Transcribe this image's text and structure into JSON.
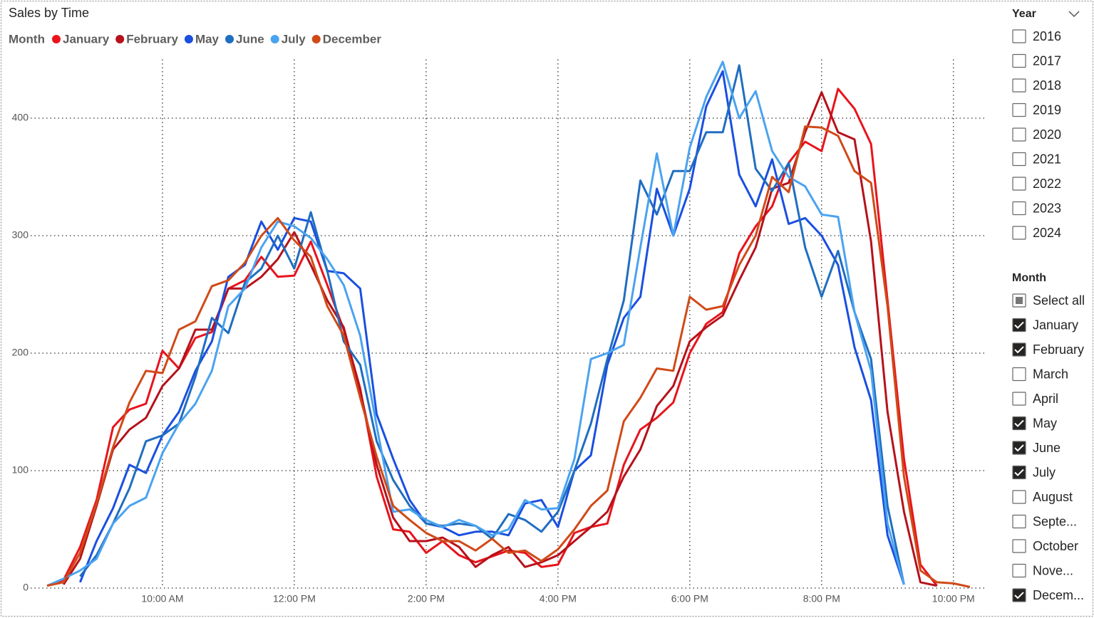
{
  "chart_data": {
    "type": "line",
    "title": "Sales by Time",
    "legend_title": "Month",
    "legend": "top-left",
    "grid": true,
    "x": [
      8.25,
      8.5,
      8.75,
      9,
      9.25,
      9.5,
      9.75,
      10,
      10.25,
      10.5,
      10.75,
      11,
      11.25,
      11.5,
      11.75,
      12,
      12.25,
      12.5,
      12.75,
      13,
      13.25,
      13.5,
      13.75,
      14,
      14.25,
      14.5,
      14.75,
      15,
      15.25,
      15.5,
      15.75,
      16,
      16.25,
      16.5,
      16.75,
      17,
      17.25,
      17.5,
      17.75,
      18,
      18.25,
      18.5,
      18.75,
      19,
      19.25,
      19.5,
      19.75,
      20,
      20.25,
      20.5,
      20.75,
      21,
      21.25,
      21.5,
      21.75,
      22,
      22.25
    ],
    "xlim": [
      8,
      22.5
    ],
    "xticks": [
      {
        "value": 10,
        "label": "10:00 AM"
      },
      {
        "value": 12,
        "label": "12:00 PM"
      },
      {
        "value": 14,
        "label": "2:00 PM"
      },
      {
        "value": 16,
        "label": "4:00 PM"
      },
      {
        "value": 18,
        "label": "6:00 PM"
      },
      {
        "value": 20,
        "label": "8:00 PM"
      },
      {
        "value": 22,
        "label": "10:00 PM"
      }
    ],
    "ylim": [
      0,
      450
    ],
    "yticks": [
      0,
      100,
      200,
      300,
      400
    ],
    "series": [
      {
        "name": "January",
        "color": "#e8141c",
        "values": [
          2,
          7,
          35,
          75,
          137,
          152,
          157,
          202,
          187,
          213,
          218,
          255,
          262,
          282,
          265,
          266,
          295,
          258,
          220,
          170,
          95,
          50,
          48,
          30,
          40,
          28,
          22,
          27,
          32,
          30,
          18,
          20,
          47,
          52,
          55,
          105,
          135,
          145,
          158,
          200,
          225,
          235,
          285,
          308,
          325,
          362,
          380,
          372,
          425,
          408,
          378,
          245,
          110,
          20,
          2,
          null,
          null
        ]
      },
      {
        "name": "February",
        "color": "#b5121b",
        "values": [
          null,
          3,
          25,
          70,
          118,
          135,
          145,
          172,
          187,
          220,
          220,
          255,
          255,
          265,
          280,
          303,
          275,
          245,
          222,
          168,
          105,
          60,
          40,
          40,
          43,
          35,
          18,
          28,
          35,
          18,
          22,
          28,
          40,
          52,
          65,
          95,
          118,
          155,
          172,
          210,
          222,
          232,
          262,
          290,
          340,
          345,
          388,
          422,
          388,
          382,
          295,
          150,
          65,
          5,
          2,
          null,
          null
        ]
      },
      {
        "name": "May",
        "color": "#1a4fe0",
        "values": [
          null,
          null,
          5,
          40,
          68,
          105,
          98,
          130,
          150,
          185,
          210,
          265,
          275,
          312,
          288,
          315,
          312,
          270,
          268,
          255,
          148,
          110,
          75,
          55,
          52,
          45,
          48,
          48,
          45,
          72,
          75,
          52,
          100,
          113,
          190,
          230,
          248,
          340,
          300,
          340,
          410,
          440,
          352,
          325,
          365,
          310,
          315,
          300,
          275,
          205,
          160,
          45,
          3,
          null,
          null,
          null,
          null
        ]
      },
      {
        "name": "June",
        "color": "#1f6ec0",
        "values": [
          null,
          null,
          10,
          28,
          55,
          85,
          125,
          130,
          140,
          180,
          230,
          217,
          260,
          272,
          300,
          272,
          320,
          270,
          210,
          190,
          125,
          92,
          70,
          55,
          53,
          55,
          53,
          42,
          63,
          58,
          48,
          65,
          100,
          140,
          195,
          245,
          347,
          318,
          355,
          355,
          388,
          388,
          445,
          357,
          338,
          362,
          290,
          248,
          287,
          235,
          195,
          70,
          3,
          null,
          null,
          null,
          null
        ]
      },
      {
        "name": "July",
        "color": "#4aa3f0",
        "values": [
          2,
          8,
          15,
          25,
          55,
          70,
          77,
          115,
          140,
          157,
          185,
          240,
          255,
          290,
          312,
          308,
          298,
          280,
          258,
          215,
          138,
          65,
          67,
          58,
          52,
          58,
          53,
          45,
          50,
          75,
          67,
          68,
          110,
          195,
          200,
          207,
          290,
          370,
          300,
          375,
          418,
          448,
          400,
          423,
          372,
          350,
          342,
          318,
          316,
          235,
          185,
          55,
          3,
          null,
          null,
          null,
          null
        ]
      },
      {
        "name": "December",
        "color": "#d04a18",
        "values": [
          2,
          5,
          30,
          72,
          120,
          158,
          185,
          183,
          220,
          227,
          257,
          262,
          277,
          300,
          315,
          296,
          282,
          240,
          215,
          162,
          112,
          70,
          58,
          47,
          40,
          40,
          32,
          42,
          30,
          32,
          23,
          33,
          50,
          70,
          83,
          142,
          162,
          187,
          185,
          248,
          237,
          240,
          275,
          300,
          350,
          337,
          393,
          392,
          385,
          355,
          345,
          240,
          95,
          15,
          5,
          4,
          1
        ]
      }
    ]
  },
  "slicers": [
    {
      "title": "Year",
      "items": [
        {
          "label": "2016",
          "state": "unchecked"
        },
        {
          "label": "2017",
          "state": "unchecked"
        },
        {
          "label": "2018",
          "state": "unchecked"
        },
        {
          "label": "2019",
          "state": "unchecked"
        },
        {
          "label": "2020",
          "state": "unchecked"
        },
        {
          "label": "2021",
          "state": "unchecked"
        },
        {
          "label": "2022",
          "state": "unchecked"
        },
        {
          "label": "2023",
          "state": "unchecked"
        },
        {
          "label": "2024",
          "state": "unchecked"
        }
      ]
    },
    {
      "title": "Month",
      "items": [
        {
          "label": "Select all",
          "state": "partial"
        },
        {
          "label": "January",
          "state": "checked"
        },
        {
          "label": "February",
          "state": "checked"
        },
        {
          "label": "March",
          "state": "unchecked"
        },
        {
          "label": "April",
          "state": "unchecked"
        },
        {
          "label": "May",
          "state": "checked"
        },
        {
          "label": "June",
          "state": "checked"
        },
        {
          "label": "July",
          "state": "checked"
        },
        {
          "label": "August",
          "state": "unchecked"
        },
        {
          "label": "Septe...",
          "state": "unchecked"
        },
        {
          "label": "October",
          "state": "unchecked"
        },
        {
          "label": "Nove...",
          "state": "unchecked"
        },
        {
          "label": "Decem...",
          "state": "checked"
        }
      ]
    }
  ]
}
